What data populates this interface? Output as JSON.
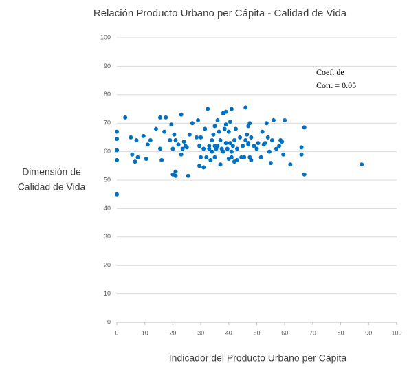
{
  "chart_data": {
    "type": "scatter",
    "title": "Relación Producto Urbano per Cápita - Calidad de Vida",
    "x_label": "Indicador del Producto Urbano per Cápita",
    "y_label_lines": [
      "Dimensión de",
      "Calidad de Vida"
    ],
    "annotation_lines": [
      "Coef. de",
      "Corr. = 0.05"
    ],
    "color": "#0070c0",
    "grid": true,
    "xlim": [
      0,
      100
    ],
    "xticks": [
      0,
      10,
      20,
      30,
      40,
      50,
      60,
      70,
      80,
      90,
      100
    ],
    "ylim": [
      0,
      100
    ],
    "yticks": [
      0,
      10,
      20,
      30,
      40,
      50,
      60,
      70,
      80,
      90,
      100
    ],
    "x": [
      0,
      0,
      0,
      0,
      0,
      3,
      5,
      5.5,
      6.5,
      7,
      7.5,
      9.5,
      10.5,
      11,
      12,
      14,
      15.5,
      15.5,
      16,
      17,
      17.5,
      19,
      19.5,
      20,
      20,
      20.5,
      21,
      21,
      21,
      22,
      23,
      23,
      23.5,
      24,
      24.5,
      25,
      25.5,
      26,
      27,
      28.5,
      29,
      29.5,
      29.5,
      30,
      30,
      31,
      31,
      31.5,
      32,
      32.5,
      33,
      33.5,
      33,
      34,
      34,
      34.5,
      35,
      35,
      35,
      35.5,
      36,
      36,
      36.5,
      37,
      37,
      37.5,
      38,
      38,
      38.5,
      39,
      39,
      39,
      39.5,
      40,
      40,
      40.5,
      40.5,
      41,
      41,
      41,
      41.5,
      42,
      42,
      42.5,
      43,
      43,
      44,
      44.5,
      45,
      45.5,
      46,
      46,
      46.5,
      47,
      47,
      47,
      47.5,
      47.5,
      48,
      48,
      49,
      50,
      50.5,
      51.5,
      52,
      52.5,
      53,
      53.5,
      54,
      54.5,
      55,
      55.5,
      56,
      57,
      58,
      58.5,
      59,
      59.5,
      60,
      62,
      66,
      66,
      67,
      67,
      87.5
    ],
    "values": [
      67,
      64.5,
      60.5,
      57,
      45,
      72,
      65,
      59,
      56.5,
      64,
      58,
      65.5,
      57.5,
      62.5,
      64,
      68,
      72,
      61,
      57,
      67,
      72,
      64,
      69.5,
      52,
      61,
      66,
      53,
      51.5,
      64,
      62.5,
      73,
      59,
      61,
      63.5,
      62,
      61.5,
      51.5,
      66,
      70,
      65,
      71,
      55,
      62,
      58,
      65,
      61,
      54.5,
      68,
      58,
      75,
      62,
      57,
      61,
      64,
      60,
      66,
      62,
      58,
      69,
      61,
      62,
      71,
      67,
      64,
      55.5,
      61,
      73.5,
      60,
      68,
      69.5,
      74,
      63,
      61,
      57.5,
      67,
      70.5,
      63,
      75,
      60,
      58,
      62,
      64,
      56.5,
      68,
      61,
      57,
      65,
      58,
      62,
      58,
      64,
      75.5,
      66,
      62.5,
      63,
      69,
      70,
      58,
      57,
      65,
      62,
      61,
      63,
      58,
      67,
      62.5,
      63,
      70,
      65,
      60,
      56,
      64,
      71,
      61,
      62,
      64,
      63.5,
      59,
      71,
      55.5,
      59,
      61.5,
      52,
      68.5,
      55.5
    ]
  }
}
